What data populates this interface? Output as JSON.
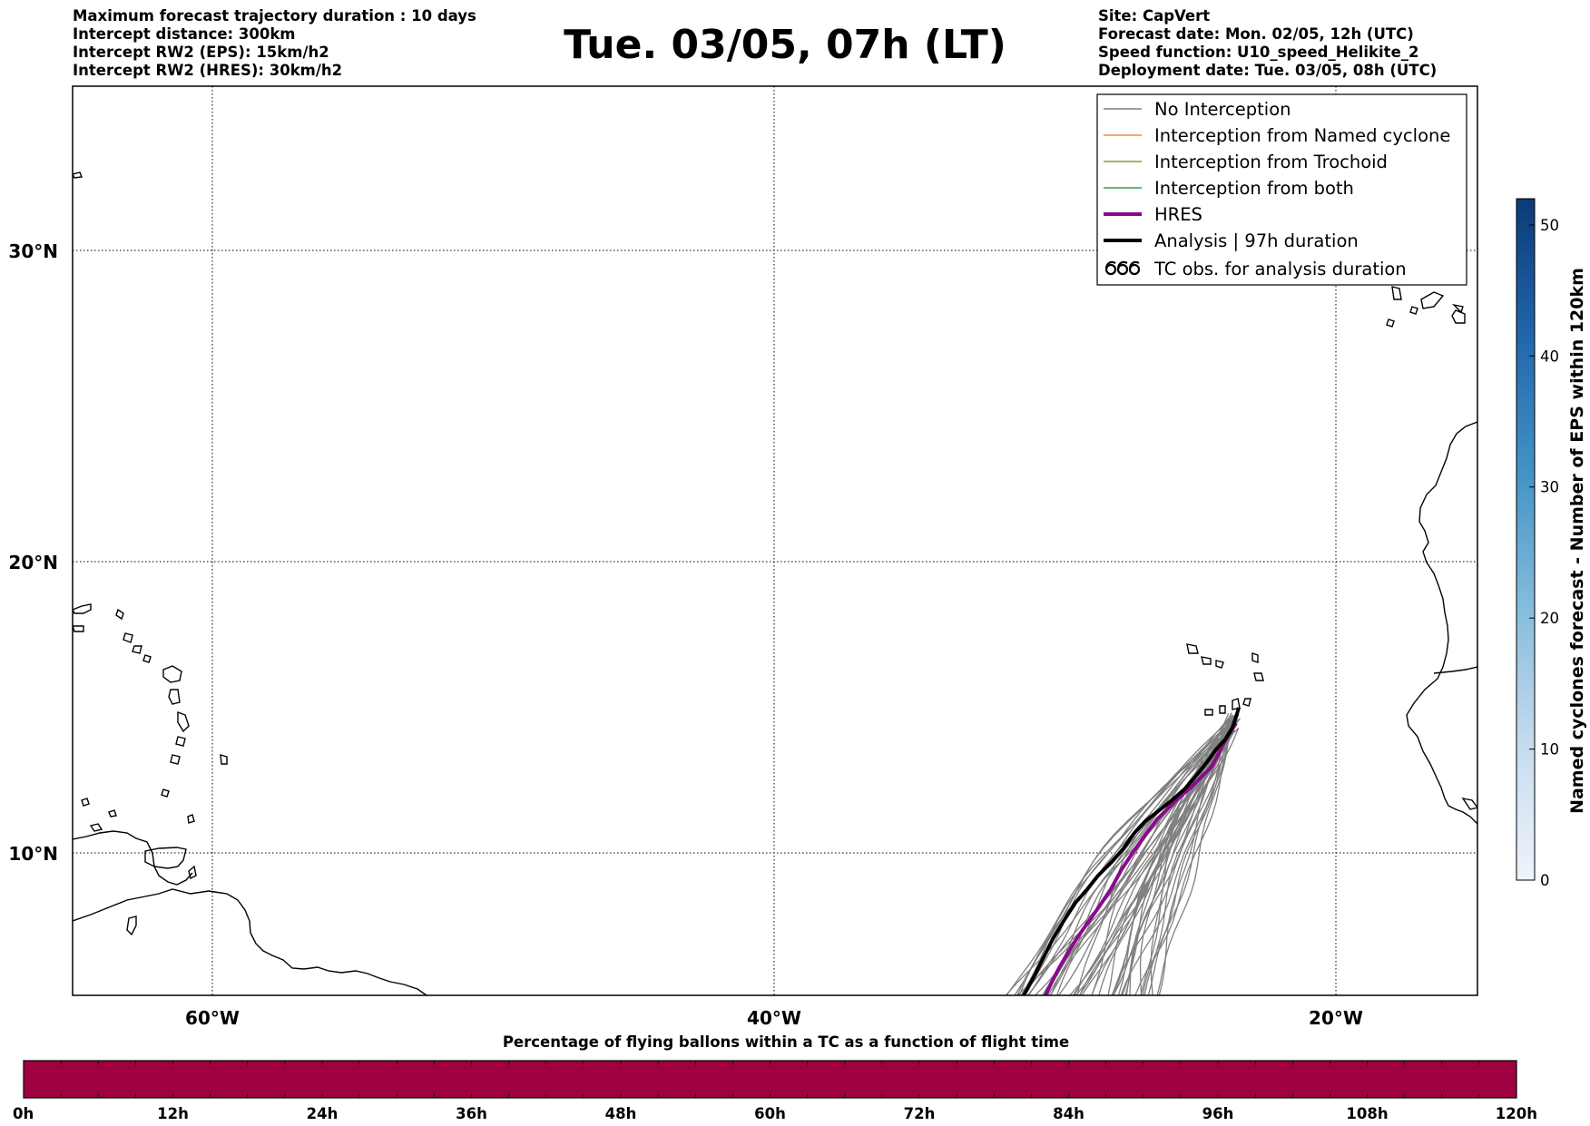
{
  "header": {
    "title": "Tue. 03/05, 07h (LT)",
    "left_info": [
      "Maximum forecast trajectory duration : 10 days",
      "Intercept distance: 300km",
      "Intercept RW2 (EPS):  15km/h2",
      "Intercept RW2 (HRES): 30km/h2"
    ],
    "right_info": [
      "Site: CapVert",
      "Forecast date: Mon. 02/05, 12h (UTC)",
      "Speed function: U10_speed_Helikite_2",
      "Deployment date: Tue. 03/05, 08h (UTC)"
    ]
  },
  "map": {
    "lat_labels": [
      "30°N",
      "20°N",
      "10°N"
    ],
    "lon_labels": [
      "60°W",
      "40°W",
      "20°W"
    ],
    "lat_range": [
      5.1,
      35.5
    ],
    "lon_range": [
      -65,
      -15
    ],
    "grid_lat": [
      30,
      20,
      10
    ],
    "grid_lon": [
      -60,
      -40,
      -20
    ]
  },
  "legend": {
    "items": [
      {
        "label": "No Interception",
        "color": "#808080",
        "style": "thin"
      },
      {
        "label": "Interception from Named cyclone",
        "color": "#f4894c",
        "style": "thin"
      },
      {
        "label": "Interception from Trochoid",
        "color": "#9a8f3a",
        "style": "thin"
      },
      {
        "label": "Interception from both",
        "color": "#3c9a3c",
        "style": "thin"
      },
      {
        "label": "HRES",
        "color": "#8b0a8b",
        "style": "thick"
      },
      {
        "label": "Analysis | 97h duration",
        "color": "#000000",
        "style": "thick"
      },
      {
        "label": "TC obs. for analysis duration",
        "color": "#000000",
        "style": "symbol"
      }
    ]
  },
  "colorbar": {
    "title": "Named cyclones forecast - Number of EPS within 120km",
    "ticks": [
      "0",
      "10",
      "20",
      "30",
      "40",
      "50"
    ],
    "range": [
      0,
      52
    ],
    "color_low": "#eef4fb",
    "color_high": "#0b3a78"
  },
  "time_bar": {
    "title": "Percentage of flying ballons within a TC as a function of flight time",
    "labels": [
      "0h",
      "12h",
      "24h",
      "36h",
      "48h",
      "60h",
      "72h",
      "84h",
      "96h",
      "108h",
      "120h"
    ],
    "fill_color": "#9e0040"
  }
}
